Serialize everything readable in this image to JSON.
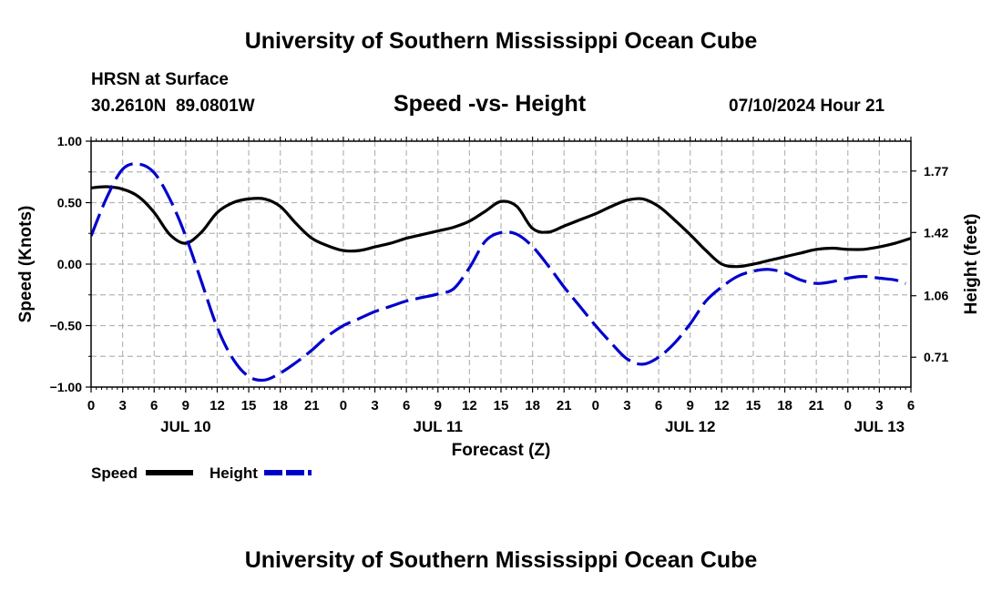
{
  "header": {
    "title": "University of Southern Mississippi Ocean Cube",
    "station": "HRSN at Surface",
    "coords": "30.2610N  89.0801W",
    "chart_title": "Speed -vs- Height",
    "datetime": "07/10/2024 Hour 21"
  },
  "footer": {
    "title": "University of Southern Mississippi Ocean Cube"
  },
  "legend": {
    "items": [
      {
        "label": "Speed",
        "color": "#000000",
        "style": "solid"
      },
      {
        "label": "Height",
        "color": "#0000cc",
        "style": "dashed"
      }
    ]
  },
  "chart_data": {
    "type": "line",
    "title": "Speed -vs- Height",
    "xlabel": "Forecast (Z)",
    "ylabel": "Speed (Knots)",
    "y2label": "Height (feet)",
    "xlim": [
      0,
      78
    ],
    "ylim": [
      -1.0,
      1.0
    ],
    "y2lim": [
      0.54,
      1.94
    ],
    "x_tick_labels": [
      "0",
      "3",
      "6",
      "9",
      "12",
      "15",
      "18",
      "21",
      "0",
      "3",
      "6",
      "9",
      "12",
      "15",
      "18",
      "21",
      "0",
      "3",
      "6",
      "9",
      "12",
      "15",
      "18",
      "21",
      "0",
      "3",
      "6"
    ],
    "day_labels": [
      {
        "x": 9,
        "label": "JUL 10"
      },
      {
        "x": 33,
        "label": "JUL 11"
      },
      {
        "x": 57,
        "label": "JUL 12"
      },
      {
        "x": 75,
        "label": "JUL 13"
      }
    ],
    "y_ticks": [
      -1.0,
      -0.5,
      0.0,
      0.5,
      1.0
    ],
    "y_tick_labels": [
      "−1.00",
      "−0.50",
      "0.00",
      "0.50",
      "1.00"
    ],
    "y2_ticks": [
      0.71,
      1.06,
      1.42,
      1.77
    ],
    "y2_tick_labels": [
      "0.71",
      "1.06",
      "1.42",
      "1.77"
    ],
    "series": [
      {
        "name": "Speed",
        "axis": "left",
        "color": "#000000",
        "x": [
          0,
          1.5,
          3,
          4.5,
          6,
          7.5,
          9,
          10.5,
          12,
          13.5,
          15,
          16.5,
          18,
          19.5,
          21,
          22.5,
          24,
          25.5,
          27,
          28.5,
          30,
          31.5,
          33,
          34.5,
          36,
          37.5,
          39,
          40.5,
          42,
          43.5,
          45,
          46.5,
          48,
          49.5,
          51,
          52.5,
          54,
          55.5,
          57,
          58.5,
          60,
          61.5,
          63,
          64.5,
          66,
          67.5,
          69,
          70.5,
          72,
          73.5,
          75,
          76.5,
          78
        ],
        "values": [
          0.62,
          0.63,
          0.61,
          0.55,
          0.42,
          0.24,
          0.17,
          0.26,
          0.42,
          0.5,
          0.53,
          0.53,
          0.47,
          0.33,
          0.21,
          0.15,
          0.11,
          0.11,
          0.14,
          0.17,
          0.21,
          0.24,
          0.27,
          0.3,
          0.35,
          0.43,
          0.51,
          0.47,
          0.29,
          0.26,
          0.31,
          0.36,
          0.41,
          0.47,
          0.52,
          0.53,
          0.47,
          0.36,
          0.24,
          0.11,
          0.0,
          -0.02,
          0.0,
          0.03,
          0.06,
          0.09,
          0.12,
          0.13,
          0.12,
          0.12,
          0.14,
          0.17,
          0.21
        ]
      },
      {
        "name": "Height",
        "axis": "right",
        "color": "#0000cc",
        "x": [
          0,
          1.5,
          3,
          4.5,
          6,
          7.5,
          9,
          10.5,
          12,
          13.5,
          15,
          16.5,
          18,
          19.5,
          21,
          22.5,
          24,
          25.5,
          27,
          28.5,
          30,
          31.5,
          33,
          34.5,
          36,
          37.5,
          39,
          40.5,
          42,
          43.5,
          45,
          46.5,
          48,
          49.5,
          51,
          52.5,
          54,
          55.5,
          57,
          58.5,
          60,
          61.5,
          63,
          64.5,
          66,
          67.5,
          69,
          70.5,
          72,
          73.5,
          75,
          76.5,
          77.5
        ],
        "values": [
          1.4,
          1.62,
          1.78,
          1.81,
          1.76,
          1.61,
          1.4,
          1.14,
          0.88,
          0.7,
          0.6,
          0.58,
          0.62,
          0.68,
          0.75,
          0.83,
          0.89,
          0.93,
          0.97,
          1.0,
          1.03,
          1.05,
          1.07,
          1.1,
          1.22,
          1.37,
          1.42,
          1.41,
          1.34,
          1.23,
          1.11,
          1.0,
          0.89,
          0.79,
          0.7,
          0.67,
          0.71,
          0.79,
          0.9,
          1.03,
          1.11,
          1.17,
          1.2,
          1.21,
          1.19,
          1.15,
          1.13,
          1.14,
          1.16,
          1.17,
          1.16,
          1.15,
          1.13
        ]
      }
    ]
  }
}
